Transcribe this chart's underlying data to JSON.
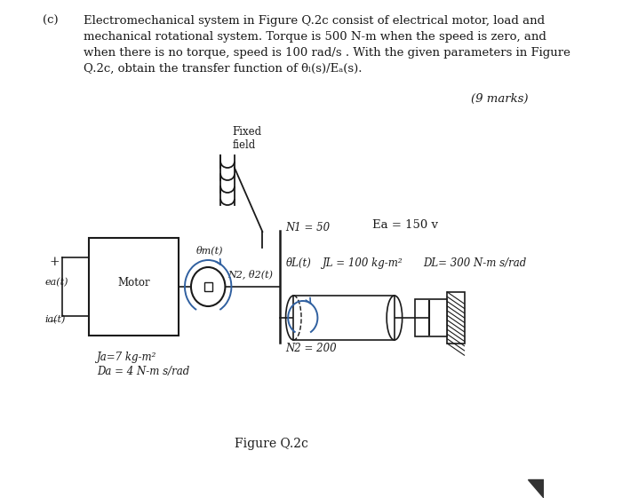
{
  "bg_color": "#ffffff",
  "text_color": "#1a1a1a",
  "blue_color": "#3060a0",
  "part_label": "(c)",
  "line1": "Electromechanical system in Figure Q.2c consist of electrical motor, load and",
  "line2": "mechanical rotational system. Torque is 500 N-m when the speed is zero, and",
  "line3": "when there is no torque, speed is 100 rad/s . With the given parameters in Figure",
  "line4": "Q.2c, obtain the transfer function of θₗ(s)/Eₐ(s).",
  "marks": "(9 marks)",
  "figure_label": "Figure Q.2c",
  "fixed_field": "Fixed\nfield",
  "ea_label": "Ea = 150 v",
  "motor_label": "Motor",
  "theta_m": "θm(t)",
  "N2_theta2": "N2, θ2(t)",
  "N1": "N1 = 50",
  "theta_L": "θL(t)",
  "JL": "JL = 100 kg-m²",
  "DL": "DL= 300 N-m s/rad",
  "N2_val": "N2 = 200",
  "Ja": "Ja=7 kg-m²",
  "Da": "Da = 4 N-m s/rad",
  "ea_t": "ea(t)",
  "ia_t": "ia(t)",
  "plus": "+",
  "minus": "–"
}
